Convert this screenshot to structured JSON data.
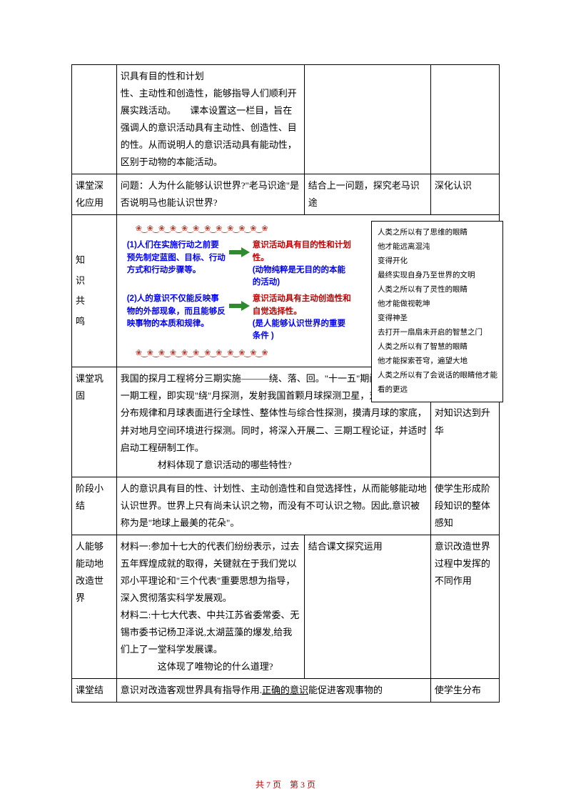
{
  "rows": {
    "r0": {
      "c2": "识具有目的性和计划\n性、主动性和创造性，能够指导人们顺利开展实践活动。　　课本设置这一栏目，旨在强调人的意识活动具有主动性、创造性、目的性。从而说明人的意识活动具有能动性，区别于动物的本能活动。"
    },
    "r1": {
      "c1": "课堂深化应用",
      "c2": "问题：人为什么能够认识世界?\"老马识途\"是否说明马也能认识世界?",
      "c3": "结合上一问题，探究老马识途",
      "c4": "深化认识"
    },
    "r2": {
      "c1": "知\n识\n共\n鸣",
      "d_left1": "(1)人们在实施行动之前要预先制定蓝图、目标、行动方式和行动步骤等。",
      "d_right1a": "意识活动具有目的性和计划性。",
      "d_right1b": "(动物纯粹是无目的的本能的活动)",
      "d_left2": "(2)人的意识不仅能反映事物的外部现象，而且能够反映事物的本质和规律。",
      "d_right2a": "意识活动具有主动创造性和自觉选择性。",
      "d_right2b": "(是人能够认识世界的重要条件 )",
      "poem": "人类之所以有了思维的眼睛\n他才能远离混沌\n变得开化\n最终实现自身乃至世界的文明\n人类之所以有了灵性的眼睛\n他才能做视乾坤\n变得神圣\n去打开一扇扇未开启的智慧之门\n人类之所以有了智慧的眼睛\n他才能探索苍穹，遍望大地\n人类之所以有了会说话的眼睛他才能看的更远"
    },
    "r3": {
      "c1": "课堂巩固",
      "c2": "我国的探月工程将分三期实施———绕、落、回。\"十一五\"期间将重点实施一期工程，即实现\"绕\"月探测，发射我国首颗月球探测卫星，对月球资源的分布规律和月球表面进行全球性、整体性与综合性探测，摸清月球的家底，并对地月空间环境进行探测。同时，将深入开展二、三期工程论证，并适时启动工程研制工作。",
      "c2q": "材料体现了意识活动的哪些特性?",
      "c4": "引导学生探索和运用知识，对知识达到升华"
    },
    "r4": {
      "c1": "阶段小结",
      "c2": "人的意识具有目的性、计划性、主动创造性和自觉选择性，从而能够能动地认识世界。世界上只有尚未认识之物，而没有不可认识之物。因此,意识被称为是\"地球上最美的花朵\"。",
      "c4": "使学生形成阶段知识的整体感知"
    },
    "r5": {
      "c1": "人能够能动地改造世界",
      "c2a": "材料一:参加十七大的代表们纷纷表示，过去五年辉煌成就的取得，关键就在于我们党以邓小平理论和\"三个代表\"重要思想为指导，深入贯彻落实科学发展观。",
      "c2b": "材料二:十七大代表、中共江苏省委常委、无锡市委书记杨卫泽说,太湖蓝藻的爆发,给我们上了一堂科学发展课。",
      "c2q": "这体现了唯物论的什么道理?",
      "c3": "结合课文探究运用",
      "c4": "意识改造世界过程中发挥的不同作用"
    },
    "r6": {
      "c1": "课堂结",
      "c2a": "意识对改造客观世界具有指导作用.",
      "c2b": "正确的意识",
      "c2c": "能促进客观事物的",
      "c4": "使学生分布"
    }
  },
  "flower": "❀‿❀‿❀‿❀‿❀‿❀‿❀‿❀‿❀‿❀‿❀‿❀",
  "footer": "共 7 页　第 3 页",
  "colors": {
    "blue": "#0000ff",
    "red": "#c00000",
    "green": "#2e8b2e"
  }
}
